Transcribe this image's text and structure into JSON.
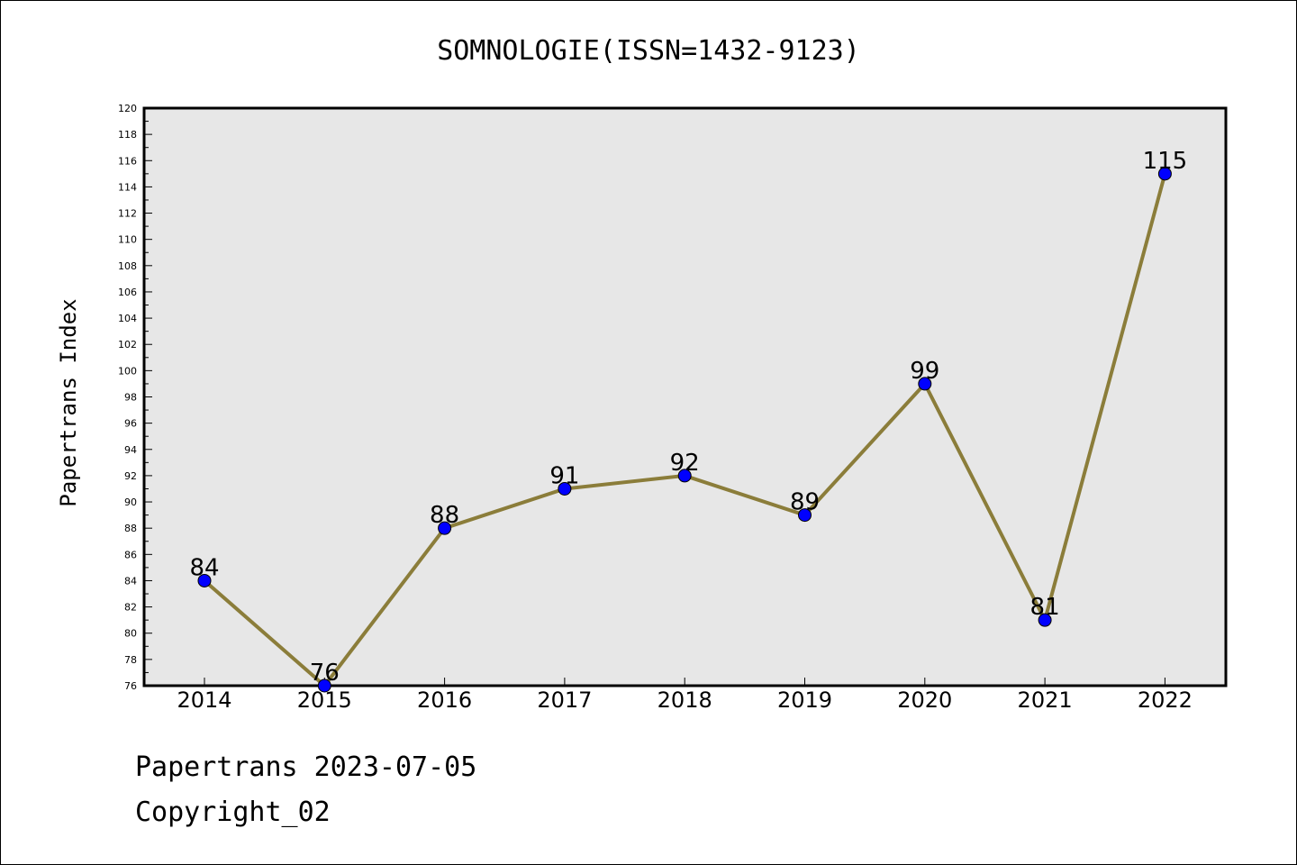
{
  "chart_data": {
    "type": "line",
    "title": "SOMNOLOGIE(ISSN=1432-9123)",
    "ylabel": "Papertrans Index",
    "xlabel": "",
    "categories": [
      "2014",
      "2015",
      "2016",
      "2017",
      "2018",
      "2019",
      "2020",
      "2021",
      "2022"
    ],
    "values": [
      84,
      76,
      88,
      91,
      92,
      89,
      99,
      81,
      115
    ],
    "ylim": [
      76,
      120
    ],
    "y_ticks": [
      76,
      78,
      80,
      82,
      84,
      86,
      88,
      90,
      92,
      94,
      96,
      98,
      100,
      102,
      104,
      106,
      108,
      110,
      112,
      114,
      116,
      118,
      120
    ],
    "grid": false,
    "line_color": "#8b7d3a",
    "marker_color": "#0000ff",
    "plot_background": "#e7e7e7"
  },
  "footer": {
    "line1": "Papertrans 2023-07-05",
    "line2": "Copyright_02"
  }
}
